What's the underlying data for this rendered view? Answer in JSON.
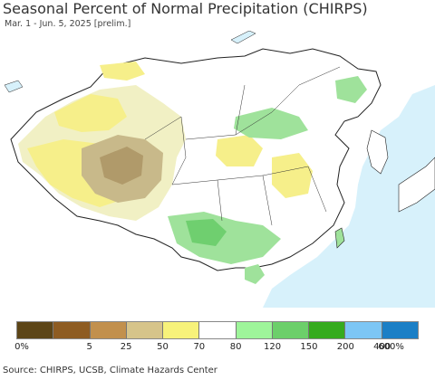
{
  "header": {
    "title": "Seasonal Percent of Normal Precipitation (CHIRPS)",
    "subtitle": "Mar. 1 - Jun. 5, 2025 [prelim.]"
  },
  "map": {
    "colors": {
      "ocean": "#d7f1fb",
      "land_outside": "#ffffff",
      "below_tan": "#c8b98a",
      "below_brown": "#b09a6a",
      "dry_yellow": "#f6ef8a",
      "pale_yellow": "#f1f0c4",
      "wet_green": "#9fe29b",
      "wet_mid_green": "#6fcf6f",
      "border": "#222222"
    }
  },
  "legend": {
    "colors": [
      "#5c4517",
      "#8e5c22",
      "#c2904d",
      "#d6c48a",
      "#f7f27a",
      "#ffffff",
      "#9ef59a",
      "#6ccf6a",
      "#36ab1e",
      "#7cc6f5",
      "#1b7fc6"
    ],
    "labels": [
      "0%",
      "5",
      "25",
      "50",
      "70",
      "80",
      "120",
      "150",
      "200",
      "400",
      "600%"
    ]
  },
  "footer": {
    "source": "Source: CHIRPS, UCSB, Climate Hazards Center"
  }
}
